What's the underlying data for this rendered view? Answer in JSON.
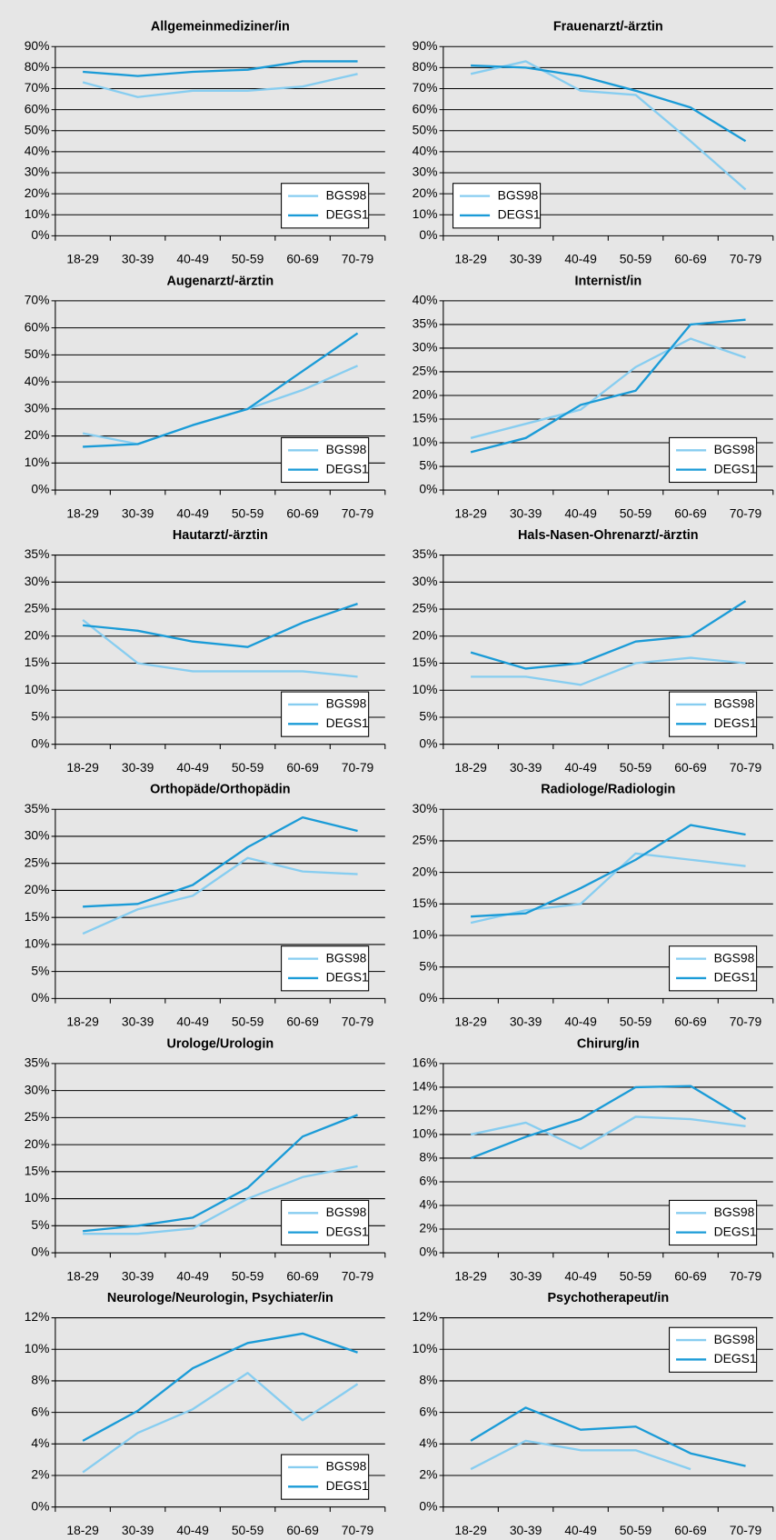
{
  "chart_data": [
    {
      "type": "line",
      "title": "Allgemeinmediziner/in",
      "categories": [
        "18-29",
        "30-39",
        "40-49",
        "50-59",
        "60-69",
        "70-79"
      ],
      "series": [
        {
          "name": "BGS98",
          "color": "#87cdf0",
          "values": [
            73,
            66,
            69,
            69,
            71,
            77
          ]
        },
        {
          "name": "DEGS1",
          "color": "#1a9bd7",
          "values": [
            78,
            76,
            78,
            79,
            83,
            83
          ]
        }
      ],
      "ylim": [
        0,
        90
      ],
      "yticks": [
        {
          "value": 0,
          "label": "0%"
        },
        {
          "value": 10,
          "label": "10%"
        },
        {
          "value": 20,
          "label": "20%"
        },
        {
          "value": 30,
          "label": "30%"
        },
        {
          "value": 40,
          "label": "40%"
        },
        {
          "value": 50,
          "label": "50%"
        },
        {
          "value": 60,
          "label": "60%"
        },
        {
          "value": 70,
          "label": "70%"
        },
        {
          "value": 80,
          "label": "80%"
        },
        {
          "value": 90,
          "label": "90%"
        }
      ],
      "grid": true,
      "legend": "lower right"
    },
    {
      "type": "line",
      "title": "Frauenarzt/-ärztin",
      "categories": [
        "18-29",
        "30-39",
        "40-49",
        "50-59",
        "60-69",
        "70-79"
      ],
      "series": [
        {
          "name": "BGS98",
          "color": "#87cdf0",
          "values": [
            77,
            83,
            69,
            67,
            45,
            22
          ]
        },
        {
          "name": "DEGS1",
          "color": "#1a9bd7",
          "values": [
            81,
            80,
            76,
            69,
            61,
            45
          ]
        }
      ],
      "ylim": [
        0,
        90
      ],
      "yticks": [
        {
          "value": 0,
          "label": "0%"
        },
        {
          "value": 10,
          "label": "10%"
        },
        {
          "value": 20,
          "label": "20%"
        },
        {
          "value": 30,
          "label": "30%"
        },
        {
          "value": 40,
          "label": "40%"
        },
        {
          "value": 50,
          "label": "50%"
        },
        {
          "value": 60,
          "label": "60%"
        },
        {
          "value": 70,
          "label": "70%"
        },
        {
          "value": 80,
          "label": "80%"
        },
        {
          "value": 90,
          "label": "90%"
        }
      ],
      "grid": true,
      "legend": "lower left"
    },
    {
      "type": "line",
      "title": "Augenarzt/-ärztin",
      "categories": [
        "18-29",
        "30-39",
        "40-49",
        "50-59",
        "60-69",
        "70-79"
      ],
      "series": [
        {
          "name": "BGS98",
          "color": "#87cdf0",
          "values": [
            21,
            17,
            24,
            30,
            37,
            46
          ]
        },
        {
          "name": "DEGS1",
          "color": "#1a9bd7",
          "values": [
            16,
            17,
            24,
            30,
            44,
            58
          ]
        }
      ],
      "ylim": [
        0,
        70
      ],
      "yticks": [
        {
          "value": 0,
          "label": "0%"
        },
        {
          "value": 10,
          "label": "10%"
        },
        {
          "value": 20,
          "label": "20%"
        },
        {
          "value": 30,
          "label": "30%"
        },
        {
          "value": 40,
          "label": "40%"
        },
        {
          "value": 50,
          "label": "50%"
        },
        {
          "value": 60,
          "label": "60%"
        },
        {
          "value": 70,
          "label": "70%"
        }
      ],
      "grid": true,
      "legend": "lower right"
    },
    {
      "type": "line",
      "title": "Internist/in",
      "categories": [
        "18-29",
        "30-39",
        "40-49",
        "50-59",
        "60-69",
        "70-79"
      ],
      "series": [
        {
          "name": "BGS98",
          "color": "#87cdf0",
          "values": [
            11,
            14,
            17,
            26,
            32,
            28
          ]
        },
        {
          "name": "DEGS1",
          "color": "#1a9bd7",
          "values": [
            8,
            11,
            18,
            21,
            35,
            36
          ]
        }
      ],
      "ylim": [
        0,
        40
      ],
      "yticks": [
        {
          "value": 0,
          "label": "0%"
        },
        {
          "value": 5,
          "label": "5%"
        },
        {
          "value": 10,
          "label": "10%"
        },
        {
          "value": 15,
          "label": "15%"
        },
        {
          "value": 20,
          "label": "20%"
        },
        {
          "value": 25,
          "label": "25%"
        },
        {
          "value": 30,
          "label": "30%"
        },
        {
          "value": 35,
          "label": "35%"
        },
        {
          "value": 40,
          "label": "40%"
        }
      ],
      "grid": true,
      "legend": "lower right"
    },
    {
      "type": "line",
      "title": "Hautarzt/-ärztin",
      "categories": [
        "18-29",
        "30-39",
        "40-49",
        "50-59",
        "60-69",
        "70-79"
      ],
      "series": [
        {
          "name": "BGS98",
          "color": "#87cdf0",
          "values": [
            23,
            15,
            13.5,
            13.5,
            13.5,
            12.5
          ]
        },
        {
          "name": "DEGS1",
          "color": "#1a9bd7",
          "values": [
            22,
            21,
            19,
            18,
            22.5,
            26
          ]
        }
      ],
      "ylim": [
        0,
        35
      ],
      "yticks": [
        {
          "value": 0,
          "label": "0%"
        },
        {
          "value": 5,
          "label": "5%"
        },
        {
          "value": 10,
          "label": "10%"
        },
        {
          "value": 15,
          "label": "15%"
        },
        {
          "value": 20,
          "label": "20%"
        },
        {
          "value": 25,
          "label": "25%"
        },
        {
          "value": 30,
          "label": "30%"
        },
        {
          "value": 35,
          "label": "35%"
        }
      ],
      "grid": true,
      "legend": "lower right"
    },
    {
      "type": "line",
      "title": "Hals-Nasen-Ohrenarzt/-ärztin",
      "categories": [
        "18-29",
        "30-39",
        "40-49",
        "50-59",
        "60-69",
        "70-79"
      ],
      "series": [
        {
          "name": "BGS98",
          "color": "#87cdf0",
          "values": [
            12.5,
            12.5,
            11,
            15,
            16,
            15
          ]
        },
        {
          "name": "DEGS1",
          "color": "#1a9bd7",
          "values": [
            17,
            14,
            15,
            19,
            20,
            26.5
          ]
        }
      ],
      "ylim": [
        0,
        35
      ],
      "yticks": [
        {
          "value": 0,
          "label": "0%"
        },
        {
          "value": 5,
          "label": "5%"
        },
        {
          "value": 10,
          "label": "10%"
        },
        {
          "value": 15,
          "label": "15%"
        },
        {
          "value": 20,
          "label": "20%"
        },
        {
          "value": 25,
          "label": "25%"
        },
        {
          "value": 30,
          "label": "30%"
        },
        {
          "value": 35,
          "label": "35%"
        }
      ],
      "grid": true,
      "legend": "lower right"
    },
    {
      "type": "line",
      "title": "Orthopäde/Orthopädin",
      "categories": [
        "18-29",
        "30-39",
        "40-49",
        "50-59",
        "60-69",
        "70-79"
      ],
      "series": [
        {
          "name": "BGS98",
          "color": "#87cdf0",
          "values": [
            12,
            16.5,
            19,
            26,
            23.5,
            23
          ]
        },
        {
          "name": "DEGS1",
          "color": "#1a9bd7",
          "values": [
            17,
            17.5,
            21,
            28,
            33.5,
            31
          ]
        }
      ],
      "ylim": [
        0,
        35
      ],
      "yticks": [
        {
          "value": 0,
          "label": "0%"
        },
        {
          "value": 5,
          "label": "5%"
        },
        {
          "value": 10,
          "label": "10%"
        },
        {
          "value": 15,
          "label": "15%"
        },
        {
          "value": 20,
          "label": "20%"
        },
        {
          "value": 25,
          "label": "25%"
        },
        {
          "value": 30,
          "label": "30%"
        },
        {
          "value": 35,
          "label": "35%"
        }
      ],
      "grid": true,
      "legend": "lower right"
    },
    {
      "type": "line",
      "title": "Radiologe/Radiologin",
      "categories": [
        "18-29",
        "30-39",
        "40-49",
        "50-59",
        "60-69",
        "70-79"
      ],
      "series": [
        {
          "name": "BGS98",
          "color": "#87cdf0",
          "values": [
            12,
            14,
            15,
            23,
            22,
            21
          ]
        },
        {
          "name": "DEGS1",
          "color": "#1a9bd7",
          "values": [
            13,
            13.5,
            17.5,
            22,
            27.5,
            26
          ]
        }
      ],
      "ylim": [
        0,
        30
      ],
      "yticks": [
        {
          "value": 0,
          "label": "0%"
        },
        {
          "value": 5,
          "label": "5%"
        },
        {
          "value": 10,
          "label": "10%"
        },
        {
          "value": 15,
          "label": "15%"
        },
        {
          "value": 20,
          "label": "20%"
        },
        {
          "value": 25,
          "label": "25%"
        },
        {
          "value": 30,
          "label": "30%"
        }
      ],
      "grid": true,
      "legend": "lower right"
    },
    {
      "type": "line",
      "title": "Urologe/Urologin",
      "categories": [
        "18-29",
        "30-39",
        "40-49",
        "50-59",
        "60-69",
        "70-79"
      ],
      "series": [
        {
          "name": "BGS98",
          "color": "#87cdf0",
          "values": [
            3.5,
            3.5,
            4.5,
            10,
            14,
            16
          ]
        },
        {
          "name": "DEGS1",
          "color": "#1a9bd7",
          "values": [
            4,
            5,
            6.5,
            12,
            21.5,
            25.5
          ]
        }
      ],
      "ylim": [
        0,
        35
      ],
      "yticks": [
        {
          "value": 0,
          "label": "0%"
        },
        {
          "value": 5,
          "label": "5%"
        },
        {
          "value": 10,
          "label": "10%"
        },
        {
          "value": 15,
          "label": "15%"
        },
        {
          "value": 20,
          "label": "20%"
        },
        {
          "value": 25,
          "label": "25%"
        },
        {
          "value": 30,
          "label": "30%"
        },
        {
          "value": 35,
          "label": "35%"
        }
      ],
      "grid": true,
      "legend": "lower right"
    },
    {
      "type": "line",
      "title": "Chirurg/in",
      "categories": [
        "18-29",
        "30-39",
        "40-49",
        "50-59",
        "60-69",
        "70-79"
      ],
      "series": [
        {
          "name": "BGS98",
          "color": "#87cdf0",
          "values": [
            10,
            11,
            8.8,
            11.5,
            11.3,
            10.7
          ]
        },
        {
          "name": "DEGS1",
          "color": "#1a9bd7",
          "values": [
            8,
            9.8,
            11.3,
            14,
            14.1,
            11.3
          ]
        }
      ],
      "ylim": [
        0,
        16
      ],
      "yticks": [
        {
          "value": 0,
          "label": "0%"
        },
        {
          "value": 2,
          "label": "2%"
        },
        {
          "value": 4,
          "label": "4%"
        },
        {
          "value": 6,
          "label": "6%"
        },
        {
          "value": 8,
          "label": "8%"
        },
        {
          "value": 10,
          "label": "10%"
        },
        {
          "value": 12,
          "label": "12%"
        },
        {
          "value": 14,
          "label": "14%"
        },
        {
          "value": 16,
          "label": "16%"
        }
      ],
      "grid": true,
      "legend": "lower right"
    },
    {
      "type": "line",
      "title": "Neurologe/Neurologin, Psychiater/in",
      "categories": [
        "18-29",
        "30-39",
        "40-49",
        "50-59",
        "60-69",
        "70-79"
      ],
      "series": [
        {
          "name": "BGS98",
          "color": "#87cdf0",
          "values": [
            2.2,
            4.7,
            6.2,
            8.5,
            5.5,
            7.8
          ]
        },
        {
          "name": "DEGS1",
          "color": "#1a9bd7",
          "values": [
            4.2,
            6.1,
            8.8,
            10.4,
            11,
            9.8
          ]
        }
      ],
      "ylim": [
        0,
        12
      ],
      "yticks": [
        {
          "value": 0,
          "label": "0%"
        },
        {
          "value": 2,
          "label": "2%"
        },
        {
          "value": 4,
          "label": "4%"
        },
        {
          "value": 6,
          "label": "6%"
        },
        {
          "value": 8,
          "label": "8%"
        },
        {
          "value": 10,
          "label": "10%"
        },
        {
          "value": 12,
          "label": "12%"
        }
      ],
      "grid": true,
      "legend": "lower right"
    },
    {
      "type": "line",
      "title": "Psychotherapeut/in",
      "categories": [
        "18-29",
        "30-39",
        "40-49",
        "50-59",
        "60-69",
        "70-79"
      ],
      "series": [
        {
          "name": "BGS98",
          "color": "#87cdf0",
          "values": [
            2.4,
            4.2,
            3.6,
            3.6,
            2.4,
            null
          ]
        },
        {
          "name": "DEGS1",
          "color": "#1a9bd7",
          "values": [
            4.2,
            6.3,
            4.9,
            5.1,
            3.4,
            2.6
          ]
        }
      ],
      "ylim": [
        0,
        12
      ],
      "yticks": [
        {
          "value": 0,
          "label": "0%"
        },
        {
          "value": 2,
          "label": "2%"
        },
        {
          "value": 4,
          "label": "4%"
        },
        {
          "value": 6,
          "label": "6%"
        },
        {
          "value": 8,
          "label": "8%"
        },
        {
          "value": 10,
          "label": "10%"
        },
        {
          "value": 12,
          "label": "12%"
        }
      ],
      "grid": true,
      "legend": "upper right"
    }
  ]
}
